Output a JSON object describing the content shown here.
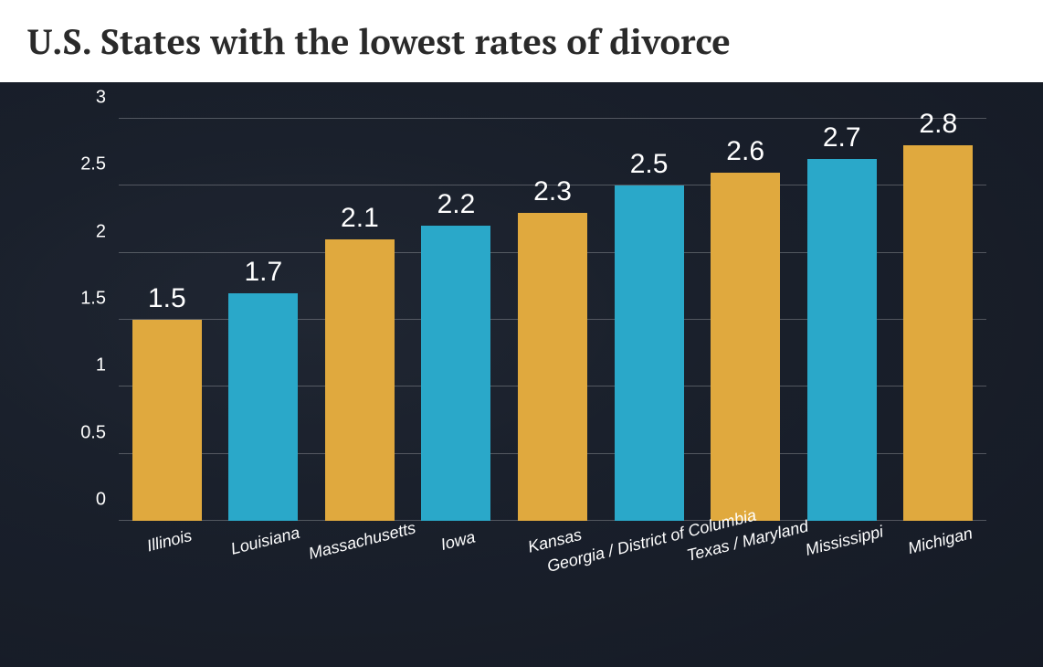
{
  "title": "U.S. States with the lowest rates of divorce",
  "chart": {
    "type": "bar",
    "background_overlay": "rgba(20,25,35,0.78)",
    "ylim": [
      0,
      3
    ],
    "ytick_step": 0.5,
    "yticks": [
      0,
      0.5,
      1,
      1.5,
      2,
      2.5,
      3
    ],
    "grid_color": "rgba(255,255,255,0.25)",
    "value_label_fontsize": 30,
    "value_label_color": "#ffffff",
    "axis_label_fontsize": 20,
    "axis_label_color": "#ffffff",
    "xlabel_fontsize": 18,
    "xlabel_rotation_deg": -14,
    "xlabel_font_style": "italic",
    "bar_width_ratio": 0.72,
    "colors": {
      "gold": "#e0a93e",
      "teal": "#2aa8c9"
    },
    "categories": [
      "Illinois",
      "Louisiana",
      "Massachusetts",
      "Iowa",
      "Kansas",
      "Georgia / District of Columbia",
      "Texas / Maryland",
      "Mississippi",
      "Michigan"
    ],
    "values": [
      1.5,
      1.7,
      2.1,
      2.2,
      2.3,
      2.5,
      2.6,
      2.7,
      2.8
    ],
    "bar_colors": [
      "#e0a93e",
      "#2aa8c9",
      "#e0a93e",
      "#2aa8c9",
      "#e0a93e",
      "#2aa8c9",
      "#e0a93e",
      "#2aa8c9",
      "#e0a93e"
    ]
  }
}
